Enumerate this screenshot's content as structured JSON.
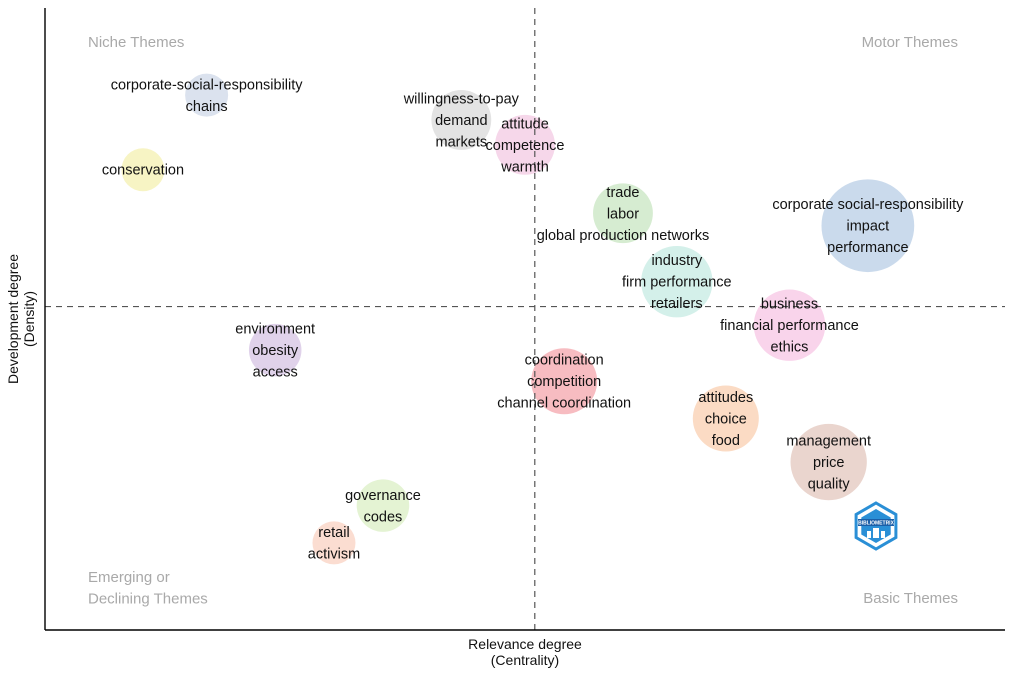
{
  "chart_data": {
    "type": "scatter",
    "subtype": "thematic-map",
    "xlabel": [
      "Relevance degree",
      "(Centrality)"
    ],
    "ylabel": [
      "Development degree",
      "(Density)"
    ],
    "quadrants": {
      "top_left": "Niche Themes",
      "top_right": "Motor Themes",
      "bottom_left": [
        "Emerging or",
        "Declining Themes"
      ],
      "bottom_right": "Basic Themes"
    },
    "clusters": [
      {
        "labels": [
          "corporate-social-responsibility",
          "chains"
        ],
        "x": 0.33,
        "y": 0.86,
        "size": 1,
        "color": "#cfd8e8"
      },
      {
        "labels": [
          "conservation"
        ],
        "x": 0.2,
        "y": 0.74,
        "size": 1,
        "color": "#f4f0b0"
      },
      {
        "labels": [
          "willingness-to-pay",
          "demand",
          "markets"
        ],
        "x": 0.85,
        "y": 0.82,
        "size": 3,
        "color": "#d9d9d9"
      },
      {
        "labels": [
          "attitude",
          "competence",
          "warmth"
        ],
        "x": 0.98,
        "y": 0.78,
        "size": 3,
        "color": "#f3c9e3"
      },
      {
        "labels": [
          "trade",
          "labor",
          "global production networks"
        ],
        "x": 1.18,
        "y": 0.67,
        "size": 3,
        "color": "#c8e6c2"
      },
      {
        "labels": [
          "corporate social-responsibility",
          "impact",
          "performance"
        ],
        "x": 1.68,
        "y": 0.65,
        "size": 10,
        "color": "#b8cde6"
      },
      {
        "labels": [
          "industry",
          "firm performance",
          "retailers"
        ],
        "x": 1.29,
        "y": 0.56,
        "size": 5,
        "color": "#c5ebe3"
      },
      {
        "labels": [
          "business",
          "financial performance",
          "ethics"
        ],
        "x": 1.52,
        "y": 0.49,
        "size": 5,
        "color": "#f7c6e4"
      },
      {
        "labels": [
          "environment",
          "obesity",
          "access"
        ],
        "x": 0.47,
        "y": 0.45,
        "size": 2,
        "color": "#d6c3e3"
      },
      {
        "labels": [
          "coordination",
          "competition",
          "channel coordination"
        ],
        "x": 1.06,
        "y": 0.4,
        "size": 4,
        "color": "#f4a5ac"
      },
      {
        "labels": [
          "attitudes",
          "choice",
          "food"
        ],
        "x": 1.39,
        "y": 0.34,
        "size": 4,
        "color": "#f9cfb0"
      },
      {
        "labels": [
          "management",
          "price",
          "quality"
        ],
        "x": 1.6,
        "y": 0.27,
        "size": 6,
        "color": "#e3c7bd"
      },
      {
        "labels": [
          "governance",
          "codes"
        ],
        "x": 0.69,
        "y": 0.2,
        "size": 2,
        "color": "#dbefc4"
      },
      {
        "labels": [
          "retail",
          "activism"
        ],
        "x": 0.59,
        "y": 0.14,
        "size": 1,
        "color": "#f9d2c2"
      }
    ],
    "centrality_median": 1.0,
    "density_median": 0.52,
    "xlim": [
      0.0,
      1.96
    ],
    "ylim": [
      0.0,
      1.0
    ],
    "axis_ticks_shown": false,
    "grid": false,
    "watermark": "BIBLIOMETRIX"
  }
}
